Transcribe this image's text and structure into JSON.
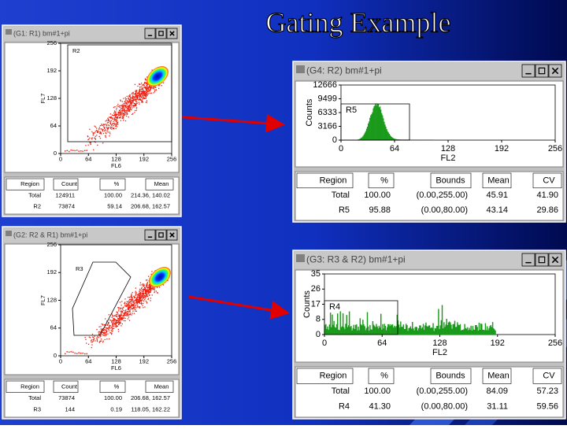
{
  "title": "Gating Example",
  "windows": [
    {
      "title": "(G1: R1) bm#1+pi",
      "plot": {
        "y_label": "FL7",
        "x_label": "FL6",
        "yticks": [
          0,
          64,
          128,
          192,
          256
        ],
        "xticks": [
          0,
          64,
          128,
          192,
          256
        ],
        "region": "R2"
      },
      "table": {
        "header": [
          "Region",
          "Count",
          "%",
          "Mean"
        ],
        "rows": [
          [
            "Total",
            "124911",
            "100.00",
            "214.36, 140.02"
          ],
          [
            "R2",
            "73874",
            "59.14",
            "206.68, 162.57"
          ]
        ]
      }
    },
    {
      "title": "(G4: R2) bm#1+pi",
      "plot": {
        "y_label": "Counts",
        "x_label": "FL2",
        "yticks": [
          0,
          3166,
          6333,
          9499,
          12666
        ],
        "xticks": [
          0,
          64,
          128,
          192,
          256
        ],
        "region": "R5"
      },
      "table": {
        "header": [
          "Region",
          "%",
          "Bounds",
          "Mean",
          "CV"
        ],
        "rows": [
          [
            "Total",
            "100.00",
            "(0.00,255.00)",
            "45.91",
            "41.90"
          ],
          [
            "R5",
            "95.88",
            "(0.00,80.00)",
            "43.14",
            "29.86"
          ]
        ]
      }
    },
    {
      "title": "(G2: R2 & R1) bm#1+pi",
      "plot": {
        "y_label": "FL7",
        "x_label": "FL6",
        "yticks": [
          0,
          64,
          128,
          192,
          256
        ],
        "xticks": [
          0,
          64,
          128,
          192,
          256
        ],
        "region": "R3"
      },
      "table": {
        "header": [
          "Region",
          "Count",
          "%",
          "Mean"
        ],
        "rows": [
          [
            "Total",
            "73874",
            "100.00",
            "206.68, 162.57"
          ],
          [
            "R3",
            "144",
            "0.19",
            "118.05, 162.22"
          ]
        ]
      }
    },
    {
      "title": "(G3: R3 & R2) bm#1+pi",
      "plot": {
        "y_label": "Counts",
        "x_label": "FL2",
        "yticks": [
          0,
          8,
          17,
          26,
          35
        ],
        "xticks": [
          0,
          64,
          128,
          192,
          256
        ],
        "region": "R4"
      },
      "table": {
        "header": [
          "Region",
          "%",
          "Bounds",
          "Mean",
          "CV"
        ],
        "rows": [
          [
            "Total",
            "100.00",
            "(0.00,255.00)",
            "84.09",
            "57.23"
          ],
          [
            "R4",
            "41.30",
            "(0.00,80.00)",
            "31.11",
            "59.56"
          ]
        ]
      }
    }
  ]
}
